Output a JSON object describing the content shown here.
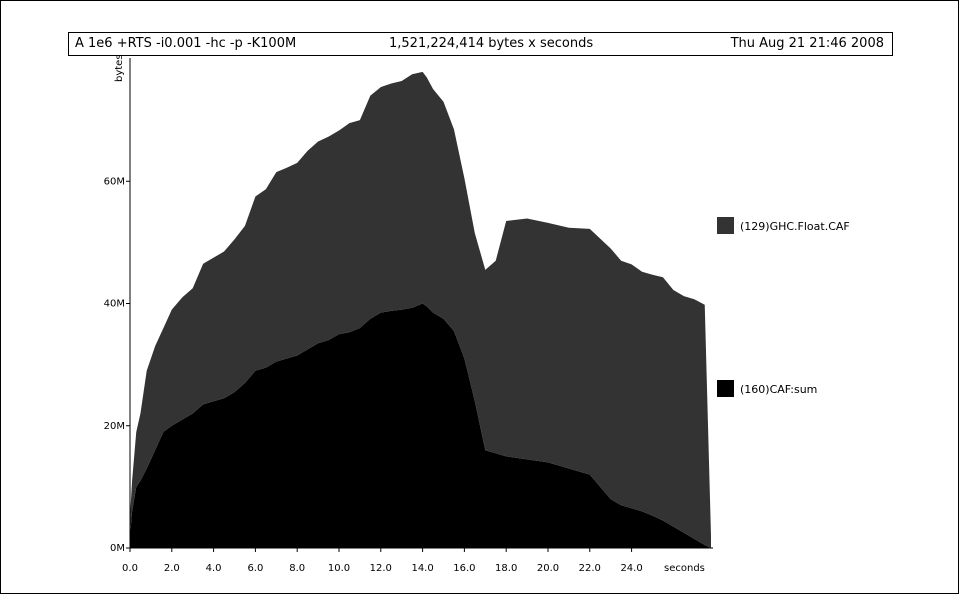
{
  "header": {
    "program": "A 1e6 +RTS -i0.001 -hc -p -K100M",
    "total": "1,521,224,414 bytes x seconds",
    "date": "Thu Aug 21 21:46 2008"
  },
  "chart_data": {
    "type": "area",
    "stacked": true,
    "xlabel": "seconds",
    "ylabel": "bytes",
    "xlim": [
      0,
      27.8
    ],
    "ylim": [
      0,
      80
    ],
    "x_ticks": [
      0,
      2,
      4,
      6,
      8,
      10,
      12,
      14,
      16,
      18,
      20,
      22,
      24
    ],
    "x_tick_labels": [
      "0.0",
      "2.0",
      "4.0",
      "6.0",
      "8.0",
      "10.0",
      "12.0",
      "14.0",
      "16.0",
      "18.0",
      "20.0",
      "22.0",
      "24.0"
    ],
    "y_ticks": [
      0,
      20,
      40,
      60
    ],
    "y_tick_labels": [
      "0M",
      "20M",
      "40M",
      "60M"
    ],
    "x": [
      0,
      0.1,
      0.3,
      0.5,
      0.8,
      1.2,
      1.6,
      2.0,
      2.5,
      3.0,
      3.5,
      4.0,
      4.5,
      5.0,
      5.5,
      6.0,
      6.5,
      7.0,
      7.5,
      8.0,
      8.5,
      9.0,
      9.5,
      10.0,
      10.5,
      11.0,
      11.5,
      12.0,
      12.5,
      13.0,
      13.5,
      14.0,
      14.2,
      14.5,
      15.0,
      15.5,
      16.0,
      16.5,
      17.0,
      17.5,
      18.0,
      19.0,
      20.0,
      21.0,
      22.0,
      23.0,
      23.5,
      24.0,
      24.5,
      25.0,
      25.5,
      26.0,
      26.5,
      27.0,
      27.5,
      27.8
    ],
    "series": [
      {
        "name": "(160)CAF:sum",
        "color": "#000000",
        "values": [
          2,
          6,
          10,
          11,
          13,
          16,
          19,
          20,
          21,
          22,
          23.5,
          24,
          24.5,
          25.5,
          27,
          29,
          29.5,
          30.5,
          31,
          31.5,
          32.5,
          33.5,
          34,
          35,
          35.3,
          36,
          37.5,
          38.5,
          38.8,
          39,
          39.3,
          40,
          39.5,
          38.5,
          37.5,
          35.5,
          31,
          24,
          16,
          15.5,
          15,
          14.5,
          14,
          13,
          12,
          8,
          7,
          6.5,
          6,
          5.3,
          4.5,
          3.5,
          2.5,
          1.5,
          0.5,
          0
        ]
      },
      {
        "name": "(129)GHC.Float.CAF",
        "color": "#333333",
        "values": [
          3,
          5,
          9,
          11,
          16,
          17,
          17,
          19,
          20,
          20.5,
          23,
          23.5,
          24,
          25,
          25.7,
          28.5,
          29.2,
          31,
          31.2,
          31.5,
          32.5,
          33,
          33.3,
          33.3,
          34.2,
          34,
          36.5,
          36.9,
          37.2,
          37.4,
          38.2,
          37.9,
          37.5,
          36.6,
          35.5,
          33,
          29.5,
          27.5,
          29.5,
          31.5,
          38.5,
          39.4,
          39.2,
          39.4,
          40.2,
          41,
          40,
          39.9,
          39.2,
          39.4,
          39.8,
          38.7,
          38.7,
          39.2,
          39.3,
          2
        ]
      }
    ],
    "legend": [
      "(129)GHC.Float.CAF",
      "(160)CAF:sum"
    ],
    "legend_position": "right"
  }
}
